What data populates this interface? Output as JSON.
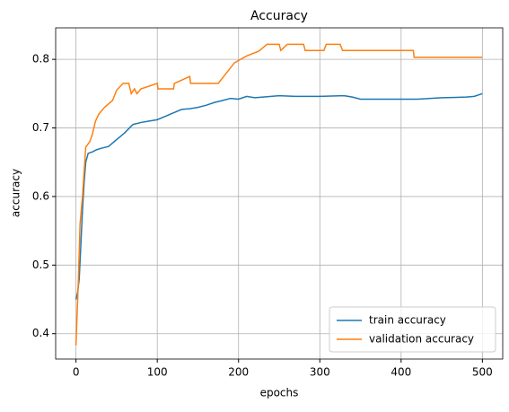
{
  "chart_data": {
    "type": "line",
    "title": "Accuracy",
    "x_label": "epochs",
    "y_label": "accuracy",
    "xlim": [
      -25,
      525
    ],
    "ylim": [
      0.363,
      0.846
    ],
    "xticks": [
      0,
      100,
      200,
      300,
      400,
      500
    ],
    "yticks": [
      0.4,
      0.5,
      0.6,
      0.7,
      0.8
    ],
    "grid": true,
    "legend": "lower right",
    "series": [
      {
        "name": "train accuracy",
        "color": "#1f77b4",
        "x": [
          0,
          2,
          4,
          6,
          8,
          10,
          12,
          15,
          20,
          25,
          30,
          40,
          50,
          60,
          70,
          80,
          90,
          100,
          110,
          120,
          130,
          140,
          150,
          160,
          170,
          180,
          190,
          200,
          210,
          220,
          230,
          250,
          270,
          300,
          330,
          340,
          350,
          380,
          420,
          450,
          480,
          490,
          500
        ],
        "values": [
          0.45,
          0.46,
          0.48,
          0.53,
          0.58,
          0.62,
          0.65,
          0.663,
          0.665,
          0.668,
          0.67,
          0.673,
          0.683,
          0.693,
          0.705,
          0.708,
          0.71,
          0.712,
          0.717,
          0.722,
          0.727,
          0.728,
          0.73,
          0.733,
          0.737,
          0.74,
          0.743,
          0.742,
          0.746,
          0.744,
          0.745,
          0.747,
          0.746,
          0.746,
          0.747,
          0.745,
          0.742,
          0.742,
          0.742,
          0.744,
          0.745,
          0.746,
          0.75
        ]
      },
      {
        "name": "validation accuracy",
        "color": "#ff7f0e",
        "x": [
          0,
          3,
          5,
          8,
          12,
          17,
          20,
          24,
          28,
          35,
          45,
          50,
          58,
          65,
          68,
          72,
          75,
          80,
          100,
          101,
          120,
          121,
          140,
          141,
          175,
          185,
          195,
          210,
          225,
          235,
          250,
          252,
          260,
          280,
          282,
          305,
          308,
          325,
          328,
          415,
          416,
          500
        ],
        "values": [
          0.383,
          0.48,
          0.56,
          0.6,
          0.672,
          0.68,
          0.69,
          0.71,
          0.72,
          0.73,
          0.74,
          0.755,
          0.765,
          0.765,
          0.75,
          0.757,
          0.75,
          0.757,
          0.765,
          0.757,
          0.757,
          0.765,
          0.775,
          0.765,
          0.765,
          0.78,
          0.795,
          0.805,
          0.812,
          0.822,
          0.822,
          0.813,
          0.822,
          0.822,
          0.813,
          0.813,
          0.822,
          0.822,
          0.813,
          0.813,
          0.803,
          0.803
        ]
      }
    ]
  }
}
